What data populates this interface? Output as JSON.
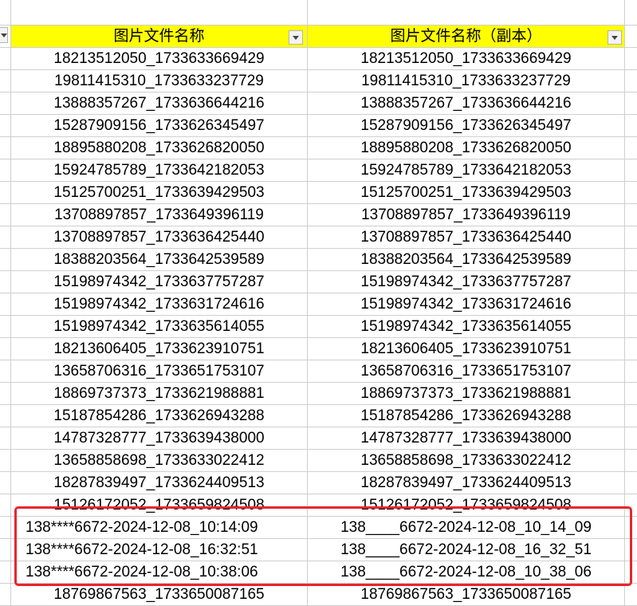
{
  "columns": {
    "col_a_header": "图片文件名称",
    "col_b_header": "图片文件名称（副本）"
  },
  "rows": [
    {
      "a": "18213512050_1733633669429",
      "b": "18213512050_1733633669429"
    },
    {
      "a": "19811415310_1733633237729",
      "b": "19811415310_1733633237729"
    },
    {
      "a": "13888357267_1733636644216",
      "b": "13888357267_1733636644216"
    },
    {
      "a": "15287909156_1733626345497",
      "b": "15287909156_1733626345497"
    },
    {
      "a": "18895880208_1733626820050",
      "b": "18895880208_1733626820050"
    },
    {
      "a": "15924785789_1733642182053",
      "b": "15924785789_1733642182053"
    },
    {
      "a": "15125700251_1733639429503",
      "b": "15125700251_1733639429503"
    },
    {
      "a": "13708897857_1733649396119",
      "b": "13708897857_1733649396119"
    },
    {
      "a": "13708897857_1733636425440",
      "b": "13708897857_1733636425440"
    },
    {
      "a": "18388203564_1733642539589",
      "b": "18388203564_1733642539589"
    },
    {
      "a": "15198974342_1733637757287",
      "b": "15198974342_1733637757287"
    },
    {
      "a": "15198974342_1733631724616",
      "b": "15198974342_1733631724616"
    },
    {
      "a": "15198974342_1733635614055",
      "b": "15198974342_1733635614055"
    },
    {
      "a": "18213606405_1733623910751",
      "b": "18213606405_1733623910751"
    },
    {
      "a": "13658706316_1733651753107",
      "b": "13658706316_1733651753107"
    },
    {
      "a": "18869737373_1733621988881",
      "b": "18869737373_1733621988881"
    },
    {
      "a": "15187854286_1733626943288",
      "b": "15187854286_1733626943288"
    },
    {
      "a": "14787328777_1733639438000",
      "b": "14787328777_1733639438000"
    },
    {
      "a": "13658858698_1733633022412",
      "b": "13658858698_1733633022412"
    },
    {
      "a": "18287839497_1733624409513",
      "b": "18287839497_1733624409513"
    },
    {
      "a": "15126172052_1733659824508",
      "b": "15126172052_1733659824508"
    },
    {
      "a": "138****6672-2024-12-08_10:14:09",
      "b": "138____6672-2024-12-08_10_14_09"
    },
    {
      "a": "138****6672-2024-12-08_16:32:51",
      "b": "138____6672-2024-12-08_16_32_51"
    },
    {
      "a": "138****6672-2024-12-08_10:38:06",
      "b": "138____6672-2024-12-08_10_38_06"
    },
    {
      "a": "18769867563_1733650087165",
      "b": "18769867563_1733650087165"
    }
  ]
}
